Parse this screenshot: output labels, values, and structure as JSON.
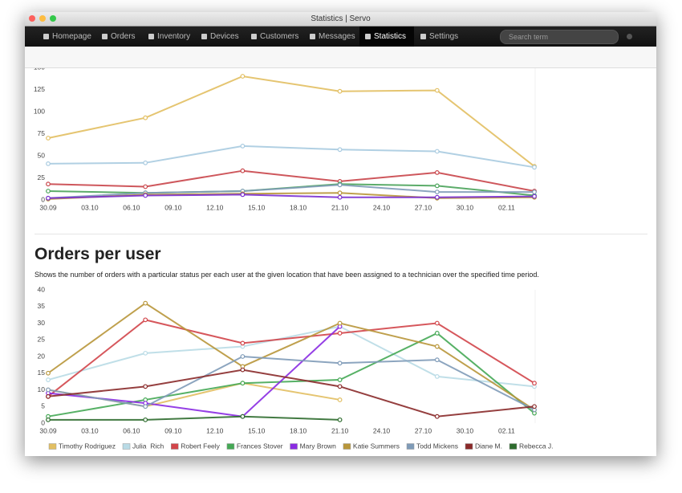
{
  "window": {
    "title": "Statistics | Servo"
  },
  "nav": {
    "items": [
      "Homepage",
      "Orders",
      "Inventory",
      "Devices",
      "Customers",
      "Messages",
      "Statistics",
      "Settings"
    ],
    "search_placeholder": "Search term"
  },
  "section": {
    "heading": "Orders per user",
    "description": "Shows the number of orders with a particular status per each user at the given location that have been assigned to a technician over the specified time period."
  },
  "chart_data": [
    {
      "type": "line",
      "x": [
        0,
        7,
        14,
        21,
        28,
        35
      ],
      "xlim": [
        0,
        35
      ],
      "xticks": [
        {
          "value": 0,
          "label": "30.09"
        },
        {
          "value": 3,
          "label": "03.10"
        },
        {
          "value": 6,
          "label": "06.10"
        },
        {
          "value": 9,
          "label": "09.10"
        },
        {
          "value": 12,
          "label": "12.10"
        },
        {
          "value": 15,
          "label": "15.10"
        },
        {
          "value": 18,
          "label": "18.10"
        },
        {
          "value": 21,
          "label": "21.10"
        },
        {
          "value": 24,
          "label": "24.10"
        },
        {
          "value": 27,
          "label": "27.10"
        },
        {
          "value": 30,
          "label": "30.10"
        },
        {
          "value": 33,
          "label": "02.11"
        }
      ],
      "ylim": [
        0,
        150
      ],
      "yticks": [
        0,
        25,
        50,
        75,
        100,
        125,
        150
      ],
      "grid": false,
      "series": [
        {
          "color": "#e2bf62",
          "values": [
            70,
            93,
            140,
            123,
            124,
            38
          ]
        },
        {
          "color": "#a9cbe0",
          "values": [
            41,
            42,
            61,
            57,
            55,
            37
          ]
        },
        {
          "color": "#c9454a",
          "values": [
            18,
            15,
            33,
            21,
            31,
            10
          ]
        },
        {
          "color": "#4aa35a",
          "values": [
            10,
            8,
            10,
            18,
            16,
            5
          ]
        },
        {
          "color": "#7f9bb8",
          "values": [
            2,
            8,
            10,
            17,
            9,
            9
          ]
        },
        {
          "color": "#b8963a",
          "values": [
            1,
            6,
            7,
            8,
            2,
            3
          ]
        },
        {
          "color": "#7a2fd0",
          "values": [
            2,
            5,
            6,
            3,
            3,
            4
          ]
        }
      ]
    },
    {
      "type": "line",
      "x": [
        0,
        7,
        14,
        21,
        28,
        35
      ],
      "xlim": [
        0,
        35
      ],
      "xticks": [
        {
          "value": 0,
          "label": "30.09"
        },
        {
          "value": 3,
          "label": "03.10"
        },
        {
          "value": 6,
          "label": "06.10"
        },
        {
          "value": 9,
          "label": "09.10"
        },
        {
          "value": 12,
          "label": "12.10"
        },
        {
          "value": 15,
          "label": "15.10"
        },
        {
          "value": 18,
          "label": "18.10"
        },
        {
          "value": 21,
          "label": "21.10"
        },
        {
          "value": 24,
          "label": "24.10"
        },
        {
          "value": 27,
          "label": "27.10"
        },
        {
          "value": 30,
          "label": "30.10"
        },
        {
          "value": 33,
          "label": "02.11"
        }
      ],
      "ylim": [
        0,
        40
      ],
      "yticks": [
        0,
        5,
        10,
        15,
        20,
        25,
        30,
        35,
        40
      ],
      "grid": false,
      "legend": "bottom",
      "series": [
        {
          "name": "Timothy Rodriguez",
          "color": "#e2bf62",
          "values": [
            10,
            5,
            12,
            7,
            null,
            null
          ]
        },
        {
          "name": "Julia  Rich",
          "color": "#b9dbe6",
          "values": [
            13,
            21,
            23,
            29,
            14,
            11
          ]
        },
        {
          "name": "Robert Feely",
          "color": "#d2454a",
          "values": [
            8,
            31,
            24,
            27,
            30,
            12
          ]
        },
        {
          "name": "Frances Stover",
          "color": "#45a855",
          "values": [
            2,
            7,
            12,
            13,
            27,
            3
          ]
        },
        {
          "name": "Mary Brown",
          "color": "#8a2be2",
          "values": [
            9,
            6,
            2,
            29,
            null,
            null
          ]
        },
        {
          "name": "Katie Summers",
          "color": "#b8963a",
          "values": [
            15,
            36,
            17,
            30,
            23,
            4
          ]
        },
        {
          "name": "Todd Mickens",
          "color": "#7f9bb8",
          "values": [
            10,
            5,
            20,
            18,
            19,
            4
          ]
        },
        {
          "name": "Diane M.",
          "color": "#8a2a2a",
          "values": [
            8,
            11,
            16,
            11,
            2,
            5
          ]
        },
        {
          "name": "Rebecca J.",
          "color": "#2d6b2d",
          "values": [
            1,
            1,
            2,
            1,
            null,
            null
          ]
        }
      ]
    }
  ]
}
